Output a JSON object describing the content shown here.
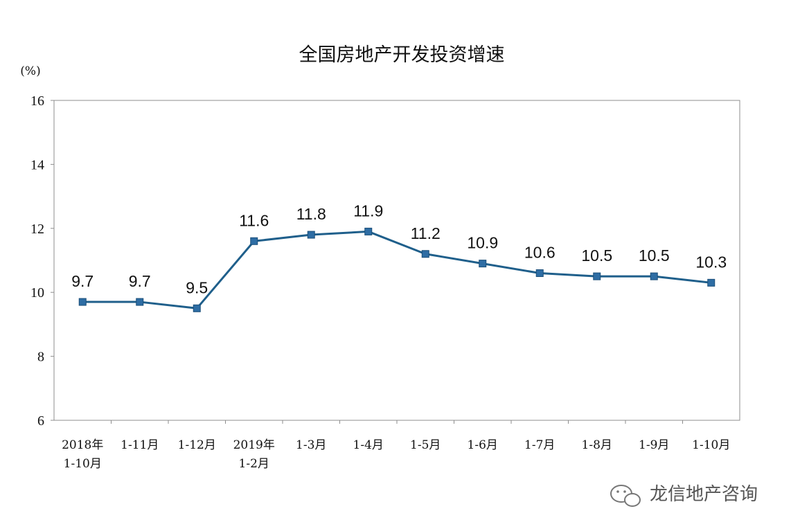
{
  "chart_data": {
    "type": "line",
    "title": "全国房地产开发投资增速",
    "ylabel": "(%)",
    "ylim": [
      6,
      16
    ],
    "yticks": [
      6,
      8,
      10,
      12,
      14,
      16
    ],
    "categories": [
      [
        "2018年",
        "1-10月"
      ],
      [
        "1-11月"
      ],
      [
        "1-12月"
      ],
      [
        "2019年",
        "1-2月"
      ],
      [
        "1-3月"
      ],
      [
        "1-4月"
      ],
      [
        "1-5月"
      ],
      [
        "1-6月"
      ],
      [
        "1-7月"
      ],
      [
        "1-8月"
      ],
      [
        "1-9月"
      ],
      [
        "1-10月"
      ]
    ],
    "series": [
      {
        "values": [
          9.7,
          9.7,
          9.5,
          11.6,
          11.8,
          11.9,
          11.2,
          10.9,
          10.6,
          10.5,
          10.5,
          10.3
        ],
        "labels": [
          "9.7",
          "9.7",
          "9.5",
          "11.6",
          "11.8",
          "11.9",
          "11.2",
          "10.9",
          "10.6",
          "10.5",
          "10.5",
          "10.3"
        ],
        "color": "#1f5f8b",
        "marker_color": "#2e6da4"
      }
    ],
    "grid": false,
    "legend": "none"
  },
  "watermark": {
    "text": "龙信地产咨询",
    "icon": "wechat-bubble-icon"
  }
}
